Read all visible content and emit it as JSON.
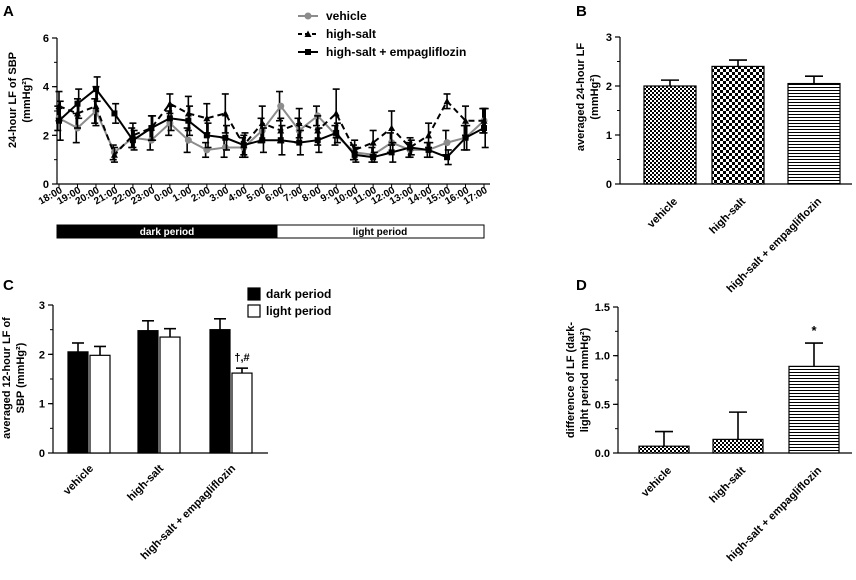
{
  "figure": {
    "panel_labels": [
      "A",
      "B",
      "C",
      "D"
    ],
    "band_labels": {
      "dark": "dark period",
      "light": "light period"
    }
  },
  "chart_data": [
    {
      "id": "A",
      "type": "line",
      "ylabel_lines": [
        "24-hour LF of SBP",
        "(mmHg²)"
      ],
      "xlabel": "",
      "ylim": [
        0,
        6
      ],
      "yticks": [
        0,
        2,
        4,
        6
      ],
      "categories": [
        "18:00",
        "19:00",
        "20:00",
        "21:00",
        "22:00",
        "23:00",
        "0:00",
        "1:00",
        "2:00",
        "3:00",
        "4:00",
        "5:00",
        "6:00",
        "7:00",
        "8:00",
        "9:00",
        "10:00",
        "11:00",
        "12:00",
        "13:00",
        "14:00",
        "15:00",
        "16:00",
        "17:00"
      ],
      "legend_position": "top-center",
      "series": [
        {
          "name": "vehicle",
          "color": "#8c8c8c",
          "style": "solid-circle",
          "values": [
            2.7,
            2.3,
            3.0,
            1.3,
            1.9,
            1.8,
            2.5,
            1.8,
            1.4,
            1.5,
            1.5,
            2.2,
            3.2,
            2.2,
            2.8,
            2.0,
            1.3,
            1.2,
            1.7,
            1.4,
            1.4,
            1.7,
            1.9,
            2.6
          ],
          "errors": [
            0.5,
            0.6,
            0.5,
            0.3,
            0.4,
            0.4,
            0.5,
            0.5,
            0.3,
            0.4,
            0.4,
            0.5,
            0.6,
            0.5,
            0.4,
            0.4,
            0.3,
            0.3,
            0.4,
            0.3,
            0.3,
            0.5,
            0.5,
            0.5
          ]
        },
        {
          "name": "high-salt",
          "color": "#000000",
          "style": "dashed-triangle",
          "values": [
            3.2,
            2.9,
            3.2,
            1.2,
            2.0,
            2.3,
            3.3,
            2.9,
            2.7,
            2.9,
            1.6,
            2.5,
            2.2,
            2.5,
            2.2,
            2.9,
            1.4,
            1.7,
            2.3,
            1.5,
            2.0,
            3.4,
            2.6,
            2.6
          ],
          "errors": [
            0.6,
            0.6,
            0.8,
            0.3,
            0.5,
            0.5,
            0.4,
            0.7,
            0.6,
            0.8,
            0.4,
            0.7,
            0.5,
            0.6,
            0.6,
            1.0,
            0.4,
            0.5,
            0.7,
            0.4,
            0.5,
            0.3,
            0.6,
            0.5
          ]
        },
        {
          "name": "high-salt + empagliflozin",
          "color": "#000000",
          "style": "solid-square",
          "values": [
            2.6,
            3.3,
            3.9,
            2.9,
            1.8,
            2.3,
            2.7,
            2.6,
            2.0,
            1.9,
            1.6,
            1.8,
            1.8,
            1.7,
            1.8,
            2.1,
            1.2,
            1.1,
            1.3,
            1.5,
            1.4,
            1.1,
            1.9,
            2.3
          ],
          "errors": [
            0.8,
            0.6,
            0.5,
            0.4,
            0.4,
            0.5,
            0.5,
            0.6,
            0.5,
            0.5,
            0.5,
            0.5,
            0.6,
            0.5,
            0.5,
            0.4,
            0.3,
            0.2,
            0.4,
            0.3,
            0.3,
            0.3,
            0.5,
            0.8
          ]
        }
      ]
    },
    {
      "id": "B",
      "type": "bar",
      "ylabel_lines": [
        "averaged 24-hour LF",
        "(mmHg²)"
      ],
      "ylim": [
        0,
        3
      ],
      "yticks": [
        0,
        1,
        2,
        3
      ],
      "categories": [
        "vehicle",
        "high-salt",
        "high-salt + empagliflozin"
      ],
      "values": [
        2.0,
        2.4,
        2.05
      ],
      "errors": [
        0.12,
        0.13,
        0.15
      ],
      "patterns": [
        "checker",
        "checker-bold",
        "hstripe"
      ]
    },
    {
      "id": "C",
      "type": "bar",
      "ylabel_lines": [
        "averaged 12-hour LF of",
        "SBP (mmHg²)"
      ],
      "ylim": [
        0,
        3
      ],
      "yticks": [
        0,
        1,
        2,
        3
      ],
      "categories": [
        "vehicle",
        "high-salt",
        "high-salt + empagliflozin"
      ],
      "legend_position": "top-right",
      "series": [
        {
          "name": "dark period",
          "color": "#000000",
          "values": [
            2.05,
            2.48,
            2.5
          ],
          "errors": [
            0.18,
            0.2,
            0.22
          ]
        },
        {
          "name": "light period",
          "color": "#ffffff",
          "values": [
            1.98,
            2.35,
            1.62
          ],
          "errors": [
            0.18,
            0.17,
            0.1
          ]
        }
      ],
      "annotations": [
        {
          "category": 2,
          "series": 1,
          "text": "†,#"
        }
      ]
    },
    {
      "id": "D",
      "type": "bar",
      "ylabel_lines": [
        "difference of LF (dark-",
        "light period mmHg²)"
      ],
      "ylim": [
        0,
        1.5
      ],
      "yticks": [
        "0.0",
        "0.5",
        "1.0",
        "1.5"
      ],
      "categories": [
        "vehicle",
        "high-salt",
        "high-salt + empagliflozin"
      ],
      "values": [
        0.07,
        0.14,
        0.89
      ],
      "errors": [
        0.15,
        0.28,
        0.24
      ],
      "patterns": [
        "checker",
        "checker",
        "hstripe"
      ],
      "annotations": [
        {
          "category": 2,
          "text": "*"
        }
      ]
    }
  ]
}
